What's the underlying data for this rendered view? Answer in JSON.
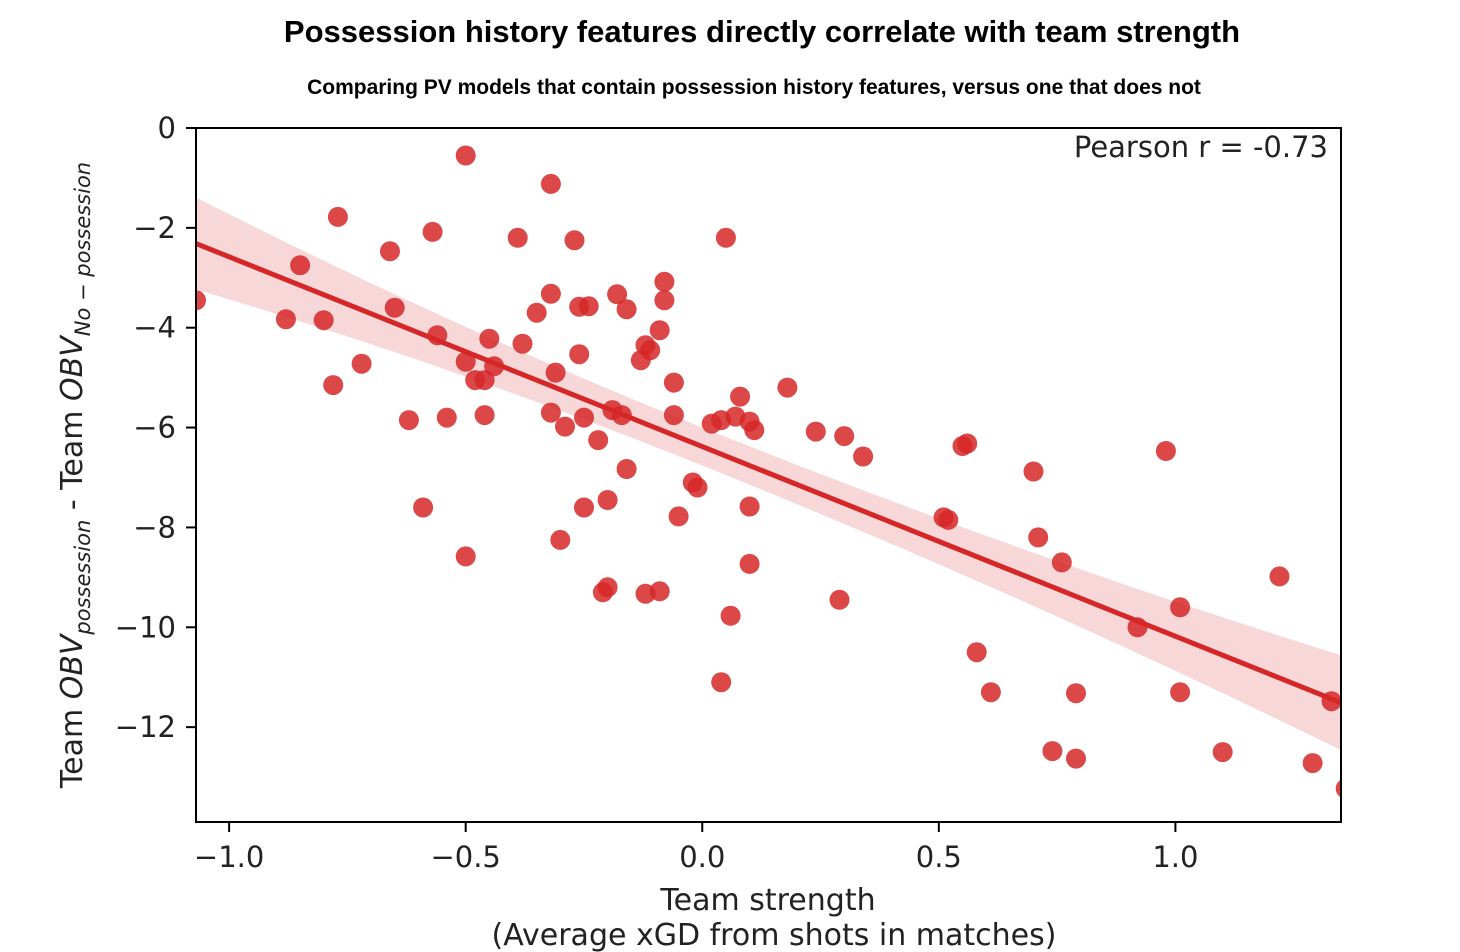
{
  "chart_data": {
    "type": "scatter",
    "title": "Possession history features directly correlate with team strength",
    "subtitle": "Comparing PV models that contain possession history features, versus one that does not",
    "xlabel_line1": "Team strength",
    "xlabel_line2": "(Average xGD from shots in matches)",
    "ylabel_parts": {
      "team1": "Team ",
      "obv1": "OBV",
      "sub1": "possession",
      "sep": " - Team ",
      "obv2": "OBV",
      "sub2": "No − possession"
    },
    "annotation": "Pearson r = -0.73",
    "xlim": [
      -1.07,
      1.35
    ],
    "ylim": [
      -13.9,
      0
    ],
    "xticks": [
      -1.0,
      -0.5,
      0.0,
      0.5,
      1.0
    ],
    "xtick_labels": [
      "−1.0",
      "−0.5",
      "0.0",
      "0.5",
      "1.0"
    ],
    "yticks": [
      0,
      -2,
      -4,
      -6,
      -8,
      -10,
      -12
    ],
    "ytick_labels": [
      "0",
      "−2",
      "−4",
      "−6",
      "−8",
      "−10",
      "−12"
    ],
    "point_color": "#d62728",
    "band_color": "#f6c9cb",
    "regression": {
      "intercept": -6.38,
      "slope": -3.8,
      "ci_start": 0.92,
      "ci_end": 0.95,
      "ci_min": 0.38
    },
    "x": [
      -1.07,
      -0.5,
      -0.32,
      -0.77,
      -0.57,
      -0.39,
      -0.27,
      -0.66,
      -0.85,
      -0.88,
      -0.8,
      -0.65,
      -0.56,
      -0.78,
      -0.72,
      -0.5,
      -0.48,
      -0.46,
      -0.45,
      -0.44,
      -0.38,
      -0.32,
      -0.35,
      -0.31,
      -0.26,
      -0.24,
      -0.26,
      -0.18,
      -0.16,
      -0.08,
      -0.08,
      -0.09,
      -0.12,
      -0.11,
      -0.13,
      -0.06,
      -0.32,
      -0.25,
      -0.29,
      -0.22,
      -0.19,
      -0.17,
      -0.06,
      -0.62,
      -0.54,
      -0.46,
      -0.59,
      -0.5,
      -0.3,
      -0.25,
      -0.2,
      -0.16,
      -0.05,
      -0.02,
      -0.01,
      0.02,
      0.04,
      0.07,
      0.08,
      0.1,
      0.11,
      0.1,
      0.18,
      0.24,
      0.3,
      0.34,
      0.1,
      0.04,
      -0.2,
      -0.21,
      -0.12,
      -0.09,
      0.06,
      0.05,
      0.29,
      0.51,
      0.52,
      0.55,
      0.56,
      0.58,
      0.61,
      0.7,
      0.71,
      0.74,
      0.76,
      0.79,
      0.79,
      0.92,
      0.98,
      1.01,
      1.01,
      1.1,
      1.22,
      1.29,
      1.33,
      1.36
    ],
    "y": [
      -3.45,
      -0.55,
      -1.12,
      -1.78,
      -2.08,
      -2.2,
      -2.25,
      -2.47,
      -2.75,
      -3.83,
      -3.85,
      -3.6,
      -4.15,
      -5.15,
      -4.72,
      -4.68,
      -5.05,
      -5.05,
      -4.22,
      -4.77,
      -4.32,
      -3.32,
      -3.7,
      -4.9,
      -4.53,
      -3.57,
      -3.58,
      -3.33,
      -3.63,
      -3.08,
      -3.45,
      -4.05,
      -4.35,
      -4.45,
      -4.65,
      -5.1,
      -5.7,
      -5.8,
      -5.98,
      -6.25,
      -5.65,
      -5.75,
      -5.75,
      -5.85,
      -5.8,
      -5.75,
      -7.6,
      -8.58,
      -8.25,
      -7.6,
      -7.45,
      -6.83,
      -7.78,
      -7.1,
      -7.2,
      -5.92,
      -5.85,
      -5.78,
      -5.38,
      -5.88,
      -6.05,
      -7.58,
      -5.2,
      -6.08,
      -6.17,
      -6.58,
      -8.73,
      -11.1,
      -9.2,
      -9.3,
      -9.33,
      -9.28,
      -9.77,
      -2.2,
      -9.45,
      -7.8,
      -7.85,
      -6.37,
      -6.32,
      -10.5,
      -11.3,
      -6.88,
      -8.2,
      -12.48,
      -8.7,
      -11.32,
      -12.63,
      -10.0,
      -6.47,
      -9.6,
      -11.3,
      -12.5,
      -8.98,
      -12.72,
      -11.48,
      -13.23
    ]
  }
}
